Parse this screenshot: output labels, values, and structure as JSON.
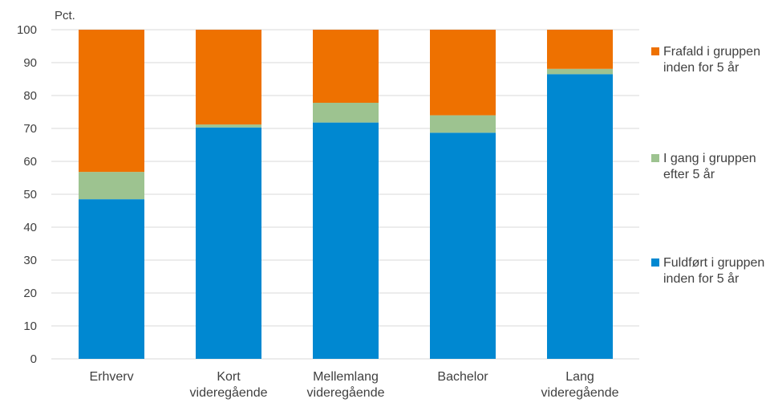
{
  "chart_data": {
    "type": "bar",
    "stacked": true,
    "unit_label": "Pct.",
    "categories": [
      [
        "Erhverv"
      ],
      [
        "Kort",
        "videregående"
      ],
      [
        "Mellemlang",
        "videregående"
      ],
      [
        "Bachelor"
      ],
      [
        "Lang",
        "videregående"
      ]
    ],
    "series": [
      {
        "name": [
          "Fuldført i gruppen",
          "inden for 5 år"
        ],
        "color": "#0088d1",
        "values": [
          48.5,
          70.3,
          71.8,
          68.7,
          86.5
        ]
      },
      {
        "name": [
          "I gang i gruppen",
          "efter 5 år"
        ],
        "color": "#9dc390",
        "values": [
          8.3,
          0.9,
          6.0,
          5.3,
          1.6
        ]
      },
      {
        "name": [
          "Frafald i gruppen",
          "inden for 5 år"
        ],
        "color": "#ee7100",
        "values": [
          43.2,
          28.8,
          22.2,
          26.0,
          11.9
        ]
      }
    ],
    "yticks": [
      0,
      10,
      20,
      30,
      40,
      50,
      60,
      70,
      80,
      90,
      100
    ],
    "ylim": [
      0,
      100
    ],
    "grid": true,
    "legend": "right"
  }
}
